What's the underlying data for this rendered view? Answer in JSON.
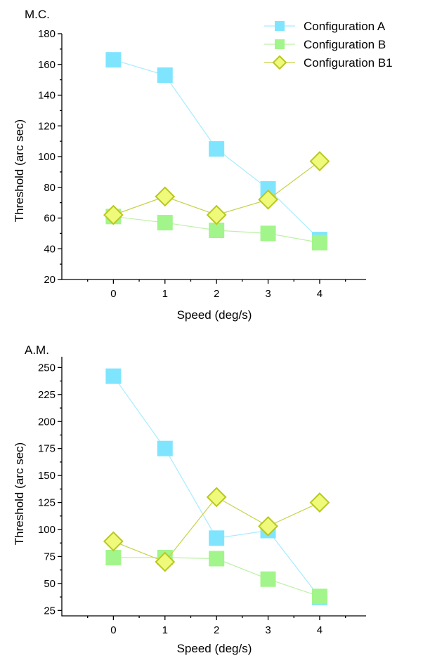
{
  "chart_data": [
    {
      "type": "line",
      "title": "M.C.",
      "xlabel": "Speed (deg/s)",
      "ylabel": "Threshold (arc sec)",
      "x": [
        0,
        1,
        2,
        3,
        4
      ],
      "xticks": [
        "0",
        "1",
        "2",
        "3",
        "4"
      ],
      "xlim": [
        -1,
        4.9
      ],
      "ylim": [
        20,
        180
      ],
      "yticks": [
        "20",
        "40",
        "60",
        "80",
        "100",
        "120",
        "140",
        "160",
        "180"
      ],
      "ytick_values": [
        20,
        40,
        60,
        80,
        100,
        120,
        140,
        160,
        180
      ],
      "grid": false,
      "legend": "top-right",
      "series": [
        {
          "name": "Configuration A",
          "values": [
            163,
            153,
            105,
            79,
            46
          ]
        },
        {
          "name": "Configuration B",
          "values": [
            61,
            57,
            52,
            50,
            44
          ]
        },
        {
          "name": "Configuration B1",
          "values": [
            62,
            74,
            62,
            72,
            97
          ]
        }
      ]
    },
    {
      "type": "line",
      "title": "A.M.",
      "xlabel": "Speed (deg/s)",
      "ylabel": "Threshold (arc sec)",
      "x": [
        0,
        1,
        2,
        3,
        4
      ],
      "xticks": [
        "0",
        "1",
        "2",
        "3",
        "4"
      ],
      "xlim": [
        -1,
        4.9
      ],
      "ylim": [
        20,
        260
      ],
      "yticks": [
        "25",
        "50",
        "75",
        "100",
        "125",
        "150",
        "175",
        "200",
        "225",
        "250"
      ],
      "ytick_values": [
        25,
        50,
        75,
        100,
        125,
        150,
        175,
        200,
        225,
        250
      ],
      "grid": false,
      "series": [
        {
          "name": "Configuration A",
          "values": [
            242,
            175,
            92,
            99,
            37
          ]
        },
        {
          "name": "Configuration B",
          "values": [
            74,
            74,
            73,
            54,
            38
          ]
        },
        {
          "name": "Configuration B1",
          "values": [
            89,
            70,
            130,
            103,
            125
          ]
        }
      ]
    }
  ],
  "series_colors": {
    "Configuration A": {
      "fill": "#7fe5ff",
      "line": "#a6ecff",
      "marker": "square"
    },
    "Configuration B": {
      "fill": "#a2f58a",
      "line": "#bdf0a7",
      "marker": "square"
    },
    "Configuration B1": {
      "fill": "#eff97a",
      "stroke": "#b9c81f",
      "line": "#c5d246",
      "marker": "diamond"
    }
  }
}
